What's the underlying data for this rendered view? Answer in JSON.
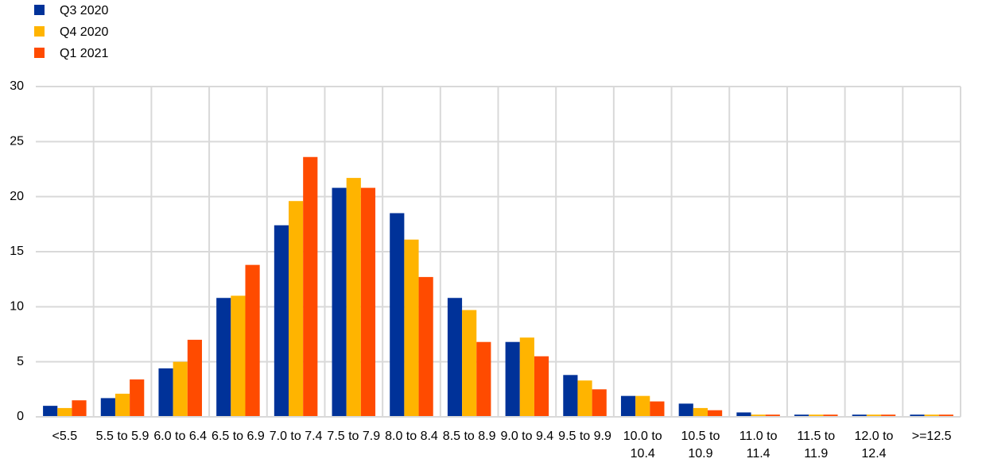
{
  "chart_data": {
    "type": "bar",
    "categories": [
      "<5.5",
      "5.5 to 5.9",
      "6.0 to 6.4",
      "6.5 to 6.9",
      "7.0 to 7.4",
      "7.5 to 7.9",
      "8.0 to 8.4",
      "8.5 to 8.9",
      "9.0 to 9.4",
      "9.5 to 9.9",
      "10.0 to 10.4",
      "10.5 to 10.9",
      "11.0 to 11.4",
      "11.5 to 11.9",
      "12.0 to 12.4",
      ">=12.5"
    ],
    "series": [
      {
        "name": "Q3 2020",
        "color": "#003299",
        "values": [
          1.0,
          1.7,
          4.4,
          10.8,
          17.4,
          20.8,
          18.5,
          10.8,
          6.8,
          3.8,
          1.9,
          1.2,
          0.4,
          0.2,
          0.2,
          0.2
        ]
      },
      {
        "name": "Q4 2020",
        "color": "#FFB400",
        "values": [
          0.8,
          2.1,
          5.0,
          11.0,
          19.6,
          21.7,
          16.1,
          9.7,
          7.2,
          3.3,
          1.9,
          0.8,
          0.2,
          0.2,
          0.2,
          0.2
        ]
      },
      {
        "name": "Q1 2021",
        "color": "#FF4B00",
        "values": [
          1.5,
          3.4,
          7.0,
          13.8,
          23.6,
          20.8,
          12.7,
          6.8,
          5.5,
          2.5,
          1.4,
          0.6,
          0.2,
          0.2,
          0.2,
          0.2
        ]
      }
    ],
    "ylim": [
      0,
      30
    ],
    "yticks": [
      0,
      5,
      10,
      15,
      20,
      25,
      30
    ],
    "grid": true,
    "legend": "top-left"
  }
}
